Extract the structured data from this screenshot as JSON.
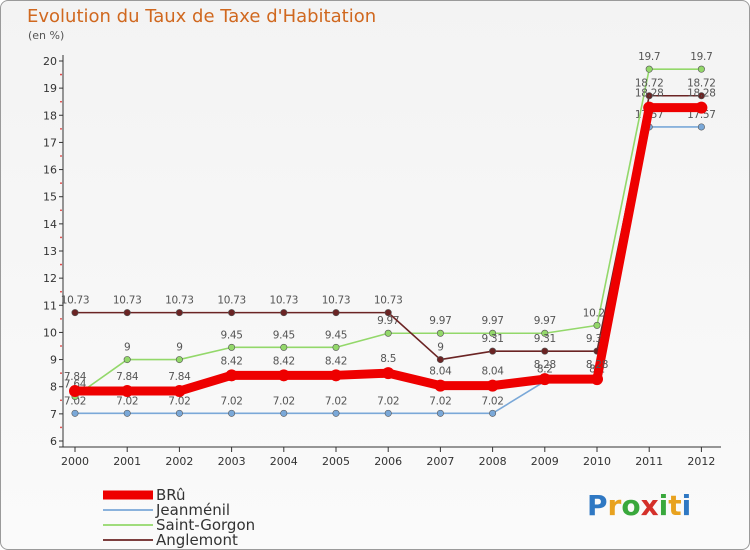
{
  "title": "Evolution du Taux de Taxe d'Habitation",
  "unit_label": "(en %)",
  "logo": {
    "text": "Proxiti",
    "colors": [
      "#2f78c3",
      "#e8a21f",
      "#39a83c",
      "#d4302a",
      "#39a83c",
      "#e8a21f",
      "#2f78c3"
    ]
  },
  "chart_data": {
    "type": "line",
    "title": "Evolution du Taux de Taxe d'Habitation",
    "ylabel": "(en %)",
    "xlabel": "",
    "ylim": [
      6,
      20
    ],
    "yticks": [
      6,
      7,
      8,
      9,
      10,
      11,
      12,
      13,
      14,
      15,
      16,
      17,
      18,
      19,
      20
    ],
    "categories": [
      "2000",
      "2001",
      "2002",
      "2003",
      "2004",
      "2005",
      "2006",
      "2007",
      "2008",
      "2009",
      "2010",
      "2011",
      "2012"
    ],
    "grid": false,
    "legend_position": "bottom-left",
    "series": [
      {
        "name": "Jeanménil",
        "color": "#7aa8d8",
        "values": [
          7.02,
          7.02,
          7.02,
          7.02,
          7.02,
          7.02,
          7.02,
          7.02,
          7.02,
          8.2,
          8.2,
          17.57,
          17.57
        ],
        "labels": [
          "7.02",
          "7.02",
          "7.02",
          "7.02",
          "7.02",
          "7.02",
          "7.02",
          "7.02",
          "7.02",
          "8.2",
          "8.2",
          "17.57",
          "17.57"
        ]
      },
      {
        "name": "Saint-Gorgon",
        "color": "#93d86a",
        "values": [
          7.64,
          9,
          9,
          9.45,
          9.45,
          9.45,
          9.97,
          9.97,
          9.97,
          9.97,
          10.26,
          19.7,
          19.7
        ],
        "labels": [
          "7.64",
          "9",
          "9",
          "9.45",
          "9.45",
          "9.45",
          "9.97",
          "9.97",
          "9.97",
          "9.97",
          "10.26",
          "19.7",
          "19.7"
        ]
      },
      {
        "name": "Anglemont",
        "color": "#6b2424",
        "values": [
          10.73,
          10.73,
          10.73,
          10.73,
          10.73,
          10.73,
          10.73,
          9,
          9.31,
          9.31,
          9.31,
          18.72,
          18.72
        ],
        "labels": [
          "10.73",
          "10.73",
          "10.73",
          "10.73",
          "10.73",
          "10.73",
          "10.73",
          "9",
          "9.31",
          "9.31",
          "9.31",
          "18.72",
          "18.72"
        ]
      },
      {
        "name": "BRû",
        "color": "#ee0000",
        "values": [
          7.84,
          7.84,
          7.84,
          8.42,
          8.42,
          8.42,
          8.5,
          8.04,
          8.04,
          8.28,
          8.28,
          18.28,
          18.28
        ],
        "labels": [
          "7.84",
          "7.84",
          "7.84",
          "8.42",
          "8.42",
          "8.42",
          "8.5",
          "8.04",
          "8.04",
          "8.28",
          "8.28",
          "18.28",
          "18.28"
        ]
      }
    ],
    "legend_order": [
      "BRû",
      "Jeanménil",
      "Saint-Gorgon",
      "Anglemont"
    ]
  }
}
